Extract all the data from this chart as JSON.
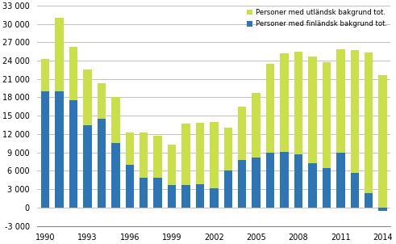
{
  "years": [
    1990,
    1991,
    1992,
    1993,
    1994,
    1995,
    1996,
    1997,
    1998,
    1999,
    2000,
    2001,
    2002,
    2003,
    2004,
    2005,
    2006,
    2007,
    2008,
    2009,
    2010,
    2011,
    2012,
    2013,
    2014
  ],
  "finnish_bg": [
    19000,
    19000,
    17500,
    13500,
    14500,
    10500,
    7000,
    4800,
    4800,
    3700,
    3700,
    3800,
    3200,
    6100,
    7700,
    8100,
    9000,
    9100,
    8700,
    7200,
    6500,
    9000,
    5700,
    2400,
    -500
  ],
  "foreign_bg_extra": [
    5200,
    12000,
    8700,
    9000,
    5800,
    7500,
    5300,
    7500,
    6900,
    6600,
    10000,
    10000,
    10700,
    6900,
    8800,
    10600,
    14500,
    16100,
    16800,
    17500,
    17200,
    16900,
    20000,
    22900,
    21600
  ],
  "finnish_color": "#2E75B6",
  "foreign_color": "#C9E04A",
  "legend_label_foreign": "Personer med utländsk bakgrund tot.",
  "legend_label_finnish": "Personer med finländsk bakgrund tot.",
  "ylim_min": -3000,
  "ylim_max": 33000,
  "yticks": [
    -3000,
    0,
    3000,
    6000,
    9000,
    12000,
    15000,
    18000,
    21000,
    24000,
    27000,
    30000,
    33000
  ],
  "xtick_years": [
    1990,
    1993,
    1996,
    1999,
    2002,
    2005,
    2008,
    2011,
    2014
  ],
  "bg_color": "#FFFFFF",
  "grid_color": "#AAAAAA"
}
